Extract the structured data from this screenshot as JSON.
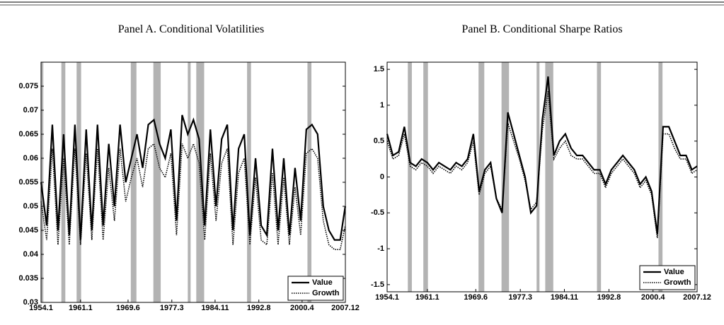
{
  "chart_data": [
    {
      "type": "line",
      "title": "Panel A. Conditional Volatilities",
      "x": [
        1954,
        1955,
        1956,
        1957,
        1958,
        1959,
        1960,
        1961,
        1962,
        1963,
        1964,
        1965,
        1966,
        1967,
        1968,
        1969,
        1970,
        1971,
        1972,
        1973,
        1974,
        1975,
        1976,
        1977,
        1978,
        1979,
        1980,
        1981,
        1982,
        1983,
        1984,
        1985,
        1986,
        1987,
        1988,
        1989,
        1990,
        1991,
        1992,
        1993,
        1994,
        1995,
        1996,
        1997,
        1998,
        1999,
        2000,
        2001,
        2002,
        2003,
        2004,
        2005,
        2006,
        2007,
        2007.9
      ],
      "series": [
        {
          "name": "Value",
          "color": "#000000",
          "style": "solid",
          "values": [
            0.055,
            0.046,
            0.067,
            0.045,
            0.065,
            0.044,
            0.067,
            0.043,
            0.066,
            0.045,
            0.067,
            0.046,
            0.063,
            0.05,
            0.067,
            0.055,
            0.06,
            0.065,
            0.058,
            0.067,
            0.068,
            0.063,
            0.06,
            0.066,
            0.047,
            0.069,
            0.065,
            0.068,
            0.064,
            0.046,
            0.066,
            0.05,
            0.064,
            0.067,
            0.045,
            0.062,
            0.065,
            0.044,
            0.06,
            0.046,
            0.044,
            0.062,
            0.045,
            0.06,
            0.044,
            0.058,
            0.047,
            0.066,
            0.067,
            0.065,
            0.05,
            0.045,
            0.043,
            0.043,
            0.05
          ]
        },
        {
          "name": "Growth",
          "color": "#000000",
          "style": "dotted",
          "values": [
            0.051,
            0.043,
            0.062,
            0.042,
            0.06,
            0.042,
            0.062,
            0.042,
            0.061,
            0.043,
            0.062,
            0.043,
            0.058,
            0.047,
            0.062,
            0.051,
            0.056,
            0.06,
            0.054,
            0.062,
            0.063,
            0.058,
            0.056,
            0.061,
            0.044,
            0.063,
            0.06,
            0.063,
            0.059,
            0.043,
            0.061,
            0.047,
            0.059,
            0.062,
            0.042,
            0.057,
            0.06,
            0.042,
            0.056,
            0.043,
            0.042,
            0.057,
            0.042,
            0.056,
            0.042,
            0.054,
            0.044,
            0.061,
            0.062,
            0.06,
            0.047,
            0.042,
            0.041,
            0.041,
            0.046
          ]
        }
      ],
      "recessions": [
        [
          1953.6,
          1954.4
        ],
        [
          1957.6,
          1958.3
        ],
        [
          1960.3,
          1961.1
        ],
        [
          1969.9,
          1970.9
        ],
        [
          1973.9,
          1975.2
        ],
        [
          1980.0,
          1980.5
        ],
        [
          1981.5,
          1982.9
        ],
        [
          1990.5,
          1991.2
        ],
        [
          2001.2,
          2001.9
        ]
      ],
      "xlim": [
        1954.0,
        2007.917
      ],
      "xticks": [
        {
          "value": 1954.0,
          "label": "1954.1"
        },
        {
          "value": 1961.0,
          "label": "1961.1"
        },
        {
          "value": 1969.417,
          "label": "1969.6"
        },
        {
          "value": 1977.167,
          "label": "1977.3"
        },
        {
          "value": 1984.833,
          "label": "1984.11"
        },
        {
          "value": 1992.583,
          "label": "1992.8"
        },
        {
          "value": 2000.25,
          "label": "2000.4"
        },
        {
          "value": 2007.917,
          "label": "2007.12"
        }
      ],
      "ylim": [
        0.03,
        0.08
      ],
      "yticks": [
        0.03,
        0.035,
        0.04,
        0.045,
        0.05,
        0.055,
        0.06,
        0.065,
        0.07,
        0.075
      ],
      "legend": "lower right"
    },
    {
      "type": "line",
      "title": "Panel B. Conditional Sharpe Ratios",
      "x": [
        1954,
        1955,
        1956,
        1957,
        1958,
        1959,
        1960,
        1961,
        1962,
        1963,
        1964,
        1965,
        1966,
        1967,
        1968,
        1969,
        1970,
        1971,
        1972,
        1973,
        1974,
        1975,
        1976,
        1977,
        1978,
        1979,
        1980,
        1981,
        1982,
        1983,
        1984,
        1985,
        1986,
        1987,
        1988,
        1989,
        1990,
        1991,
        1992,
        1993,
        1994,
        1995,
        1996,
        1997,
        1998,
        1999,
        2000,
        2001,
        2002,
        2003,
        2004,
        2005,
        2006,
        2007,
        2007.9
      ],
      "series": [
        {
          "name": "Value",
          "color": "#000000",
          "style": "solid",
          "values": [
            0.6,
            0.3,
            0.35,
            0.7,
            0.2,
            0.15,
            0.25,
            0.2,
            0.1,
            0.2,
            0.15,
            0.1,
            0.2,
            0.15,
            0.25,
            0.6,
            -0.2,
            0.1,
            0.2,
            -0.3,
            -0.5,
            0.9,
            0.6,
            0.3,
            0.0,
            -0.5,
            -0.4,
            0.8,
            1.4,
            0.3,
            0.5,
            0.6,
            0.4,
            0.3,
            0.3,
            0.2,
            0.1,
            0.1,
            -0.1,
            0.1,
            0.2,
            0.3,
            0.2,
            0.1,
            -0.1,
            0.0,
            -0.2,
            -0.8,
            0.7,
            0.7,
            0.5,
            0.3,
            0.3,
            0.1,
            0.15
          ]
        },
        {
          "name": "Growth",
          "color": "#000000",
          "style": "dotted",
          "values": [
            0.5,
            0.25,
            0.3,
            0.6,
            0.15,
            0.1,
            0.2,
            0.15,
            0.05,
            0.15,
            0.1,
            0.05,
            0.15,
            0.1,
            0.2,
            0.5,
            -0.25,
            0.05,
            0.15,
            -0.3,
            -0.45,
            0.75,
            0.5,
            0.25,
            -0.05,
            -0.45,
            -0.35,
            0.65,
            1.2,
            0.25,
            0.4,
            0.5,
            0.3,
            0.25,
            0.25,
            0.15,
            0.05,
            0.05,
            -0.15,
            0.05,
            0.15,
            0.25,
            0.15,
            0.05,
            -0.15,
            -0.05,
            -0.25,
            -0.85,
            0.6,
            0.6,
            0.4,
            0.25,
            0.25,
            0.05,
            0.1
          ]
        }
      ],
      "recessions": [
        [
          1957.6,
          1958.3
        ],
        [
          1960.3,
          1961.1
        ],
        [
          1969.9,
          1970.9
        ],
        [
          1973.9,
          1975.2
        ],
        [
          1980.0,
          1980.5
        ],
        [
          1981.5,
          1982.9
        ],
        [
          1990.5,
          1991.2
        ],
        [
          2001.2,
          2001.9
        ]
      ],
      "xlim": [
        1954.0,
        2007.917
      ],
      "xticks": [
        {
          "value": 1954.0,
          "label": "1954.1"
        },
        {
          "value": 1961.0,
          "label": "1961.1"
        },
        {
          "value": 1969.417,
          "label": "1969.6"
        },
        {
          "value": 1977.167,
          "label": "1977.3"
        },
        {
          "value": 1984.833,
          "label": "1984.11"
        },
        {
          "value": 1992.583,
          "label": "1992.8"
        },
        {
          "value": 2000.25,
          "label": "2000.4"
        },
        {
          "value": 2007.917,
          "label": "2007.12"
        }
      ],
      "ylim": [
        -1.6,
        1.6
      ],
      "yticks": [
        -1.5,
        -1,
        -0.5,
        0,
        0.5,
        1,
        1.5
      ],
      "legend": "lower right"
    }
  ]
}
